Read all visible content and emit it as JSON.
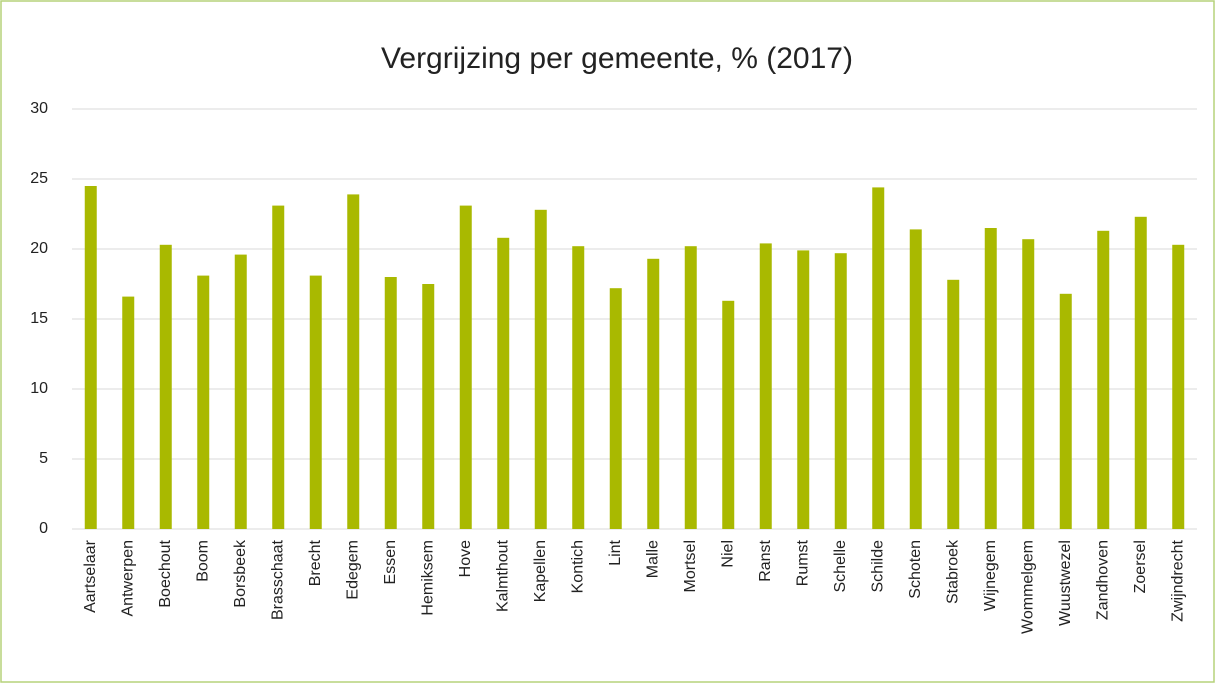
{
  "chart_data": {
    "type": "bar",
    "title": "Vergrijzing per gemeente, % (2017)",
    "categories": [
      "Aartselaar",
      "Antwerpen",
      "Boechout",
      "Boom",
      "Borsbeek",
      "Brasschaat",
      "Brecht",
      "Edegem",
      "Essen",
      "Hemiksem",
      "Hove",
      "Kalmthout",
      "Kapellen",
      "Kontich",
      "Lint",
      "Malle",
      "Mortsel",
      "Niel",
      "Ranst",
      "Rumst",
      "Schelle",
      "Schilde",
      "Schoten",
      "Stabroek",
      "Wijnegem",
      "Wommelgem",
      "Wuustwezel",
      "Zandhoven",
      "Zoersel",
      "Zwijndrecht"
    ],
    "values": [
      24.5,
      16.6,
      20.3,
      18.1,
      19.6,
      23.1,
      18.1,
      23.9,
      18.0,
      17.5,
      23.1,
      20.8,
      22.8,
      20.2,
      17.2,
      19.3,
      20.2,
      16.3,
      20.4,
      19.9,
      19.7,
      24.4,
      21.4,
      17.8,
      21.5,
      20.7,
      16.8,
      21.3,
      22.3,
      20.3
    ],
    "color": "#a9b900",
    "ylim": [
      0,
      30
    ],
    "yticks": [
      0,
      5,
      10,
      15,
      20,
      25,
      30
    ],
    "grid": true
  }
}
